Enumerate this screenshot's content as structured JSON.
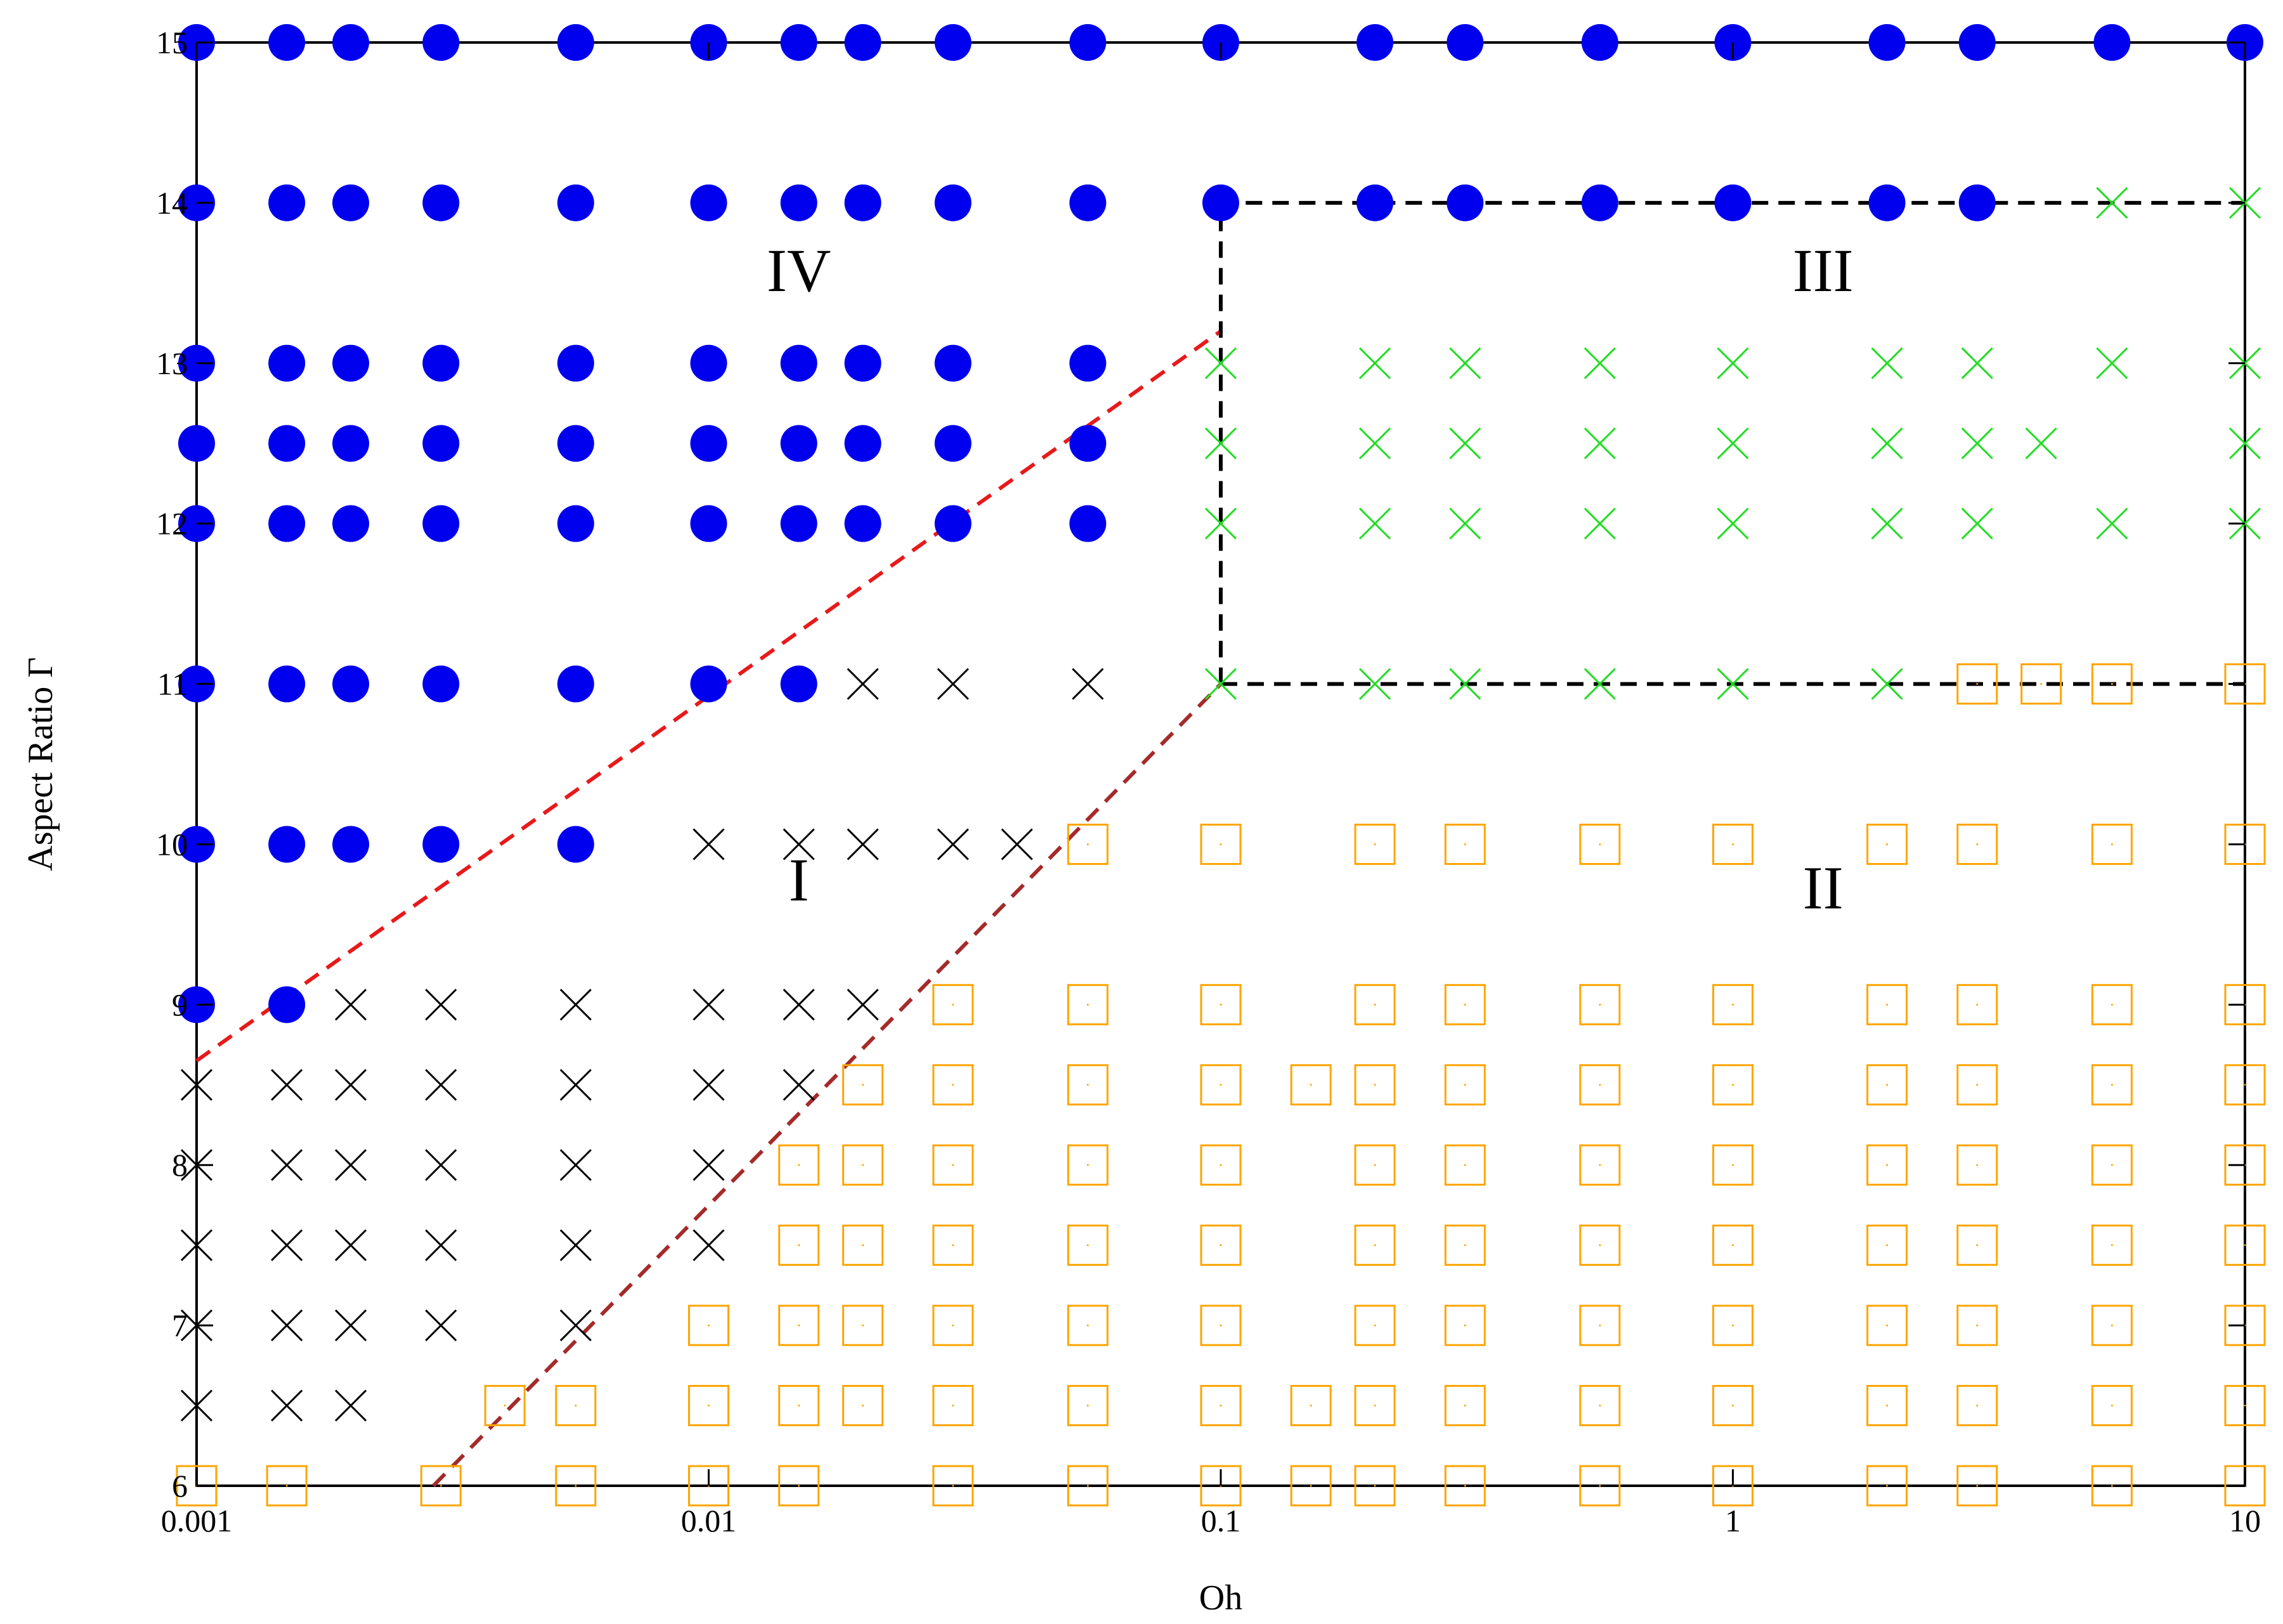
{
  "chart_data": {
    "type": "scatter",
    "xlabel": "Oh",
    "ylabel": "Aspect Ratio Γ",
    "xscale": "log",
    "xlim": [
      0.001,
      10
    ],
    "ylim": [
      6,
      15
    ],
    "x_ticks": [
      {
        "value": 0.001,
        "label": "0.001"
      },
      {
        "value": 0.01,
        "label": "0.01"
      },
      {
        "value": 0.1,
        "label": "0.1"
      },
      {
        "value": 1,
        "label": "1"
      },
      {
        "value": 10,
        "label": "10"
      }
    ],
    "y_ticks": [
      {
        "value": 6,
        "label": "6"
      },
      {
        "value": 7,
        "label": "7"
      },
      {
        "value": 8,
        "label": "8"
      },
      {
        "value": 9,
        "label": "9"
      },
      {
        "value": 10,
        "label": "10"
      },
      {
        "value": 11,
        "label": "11"
      },
      {
        "value": 12,
        "label": "12"
      },
      {
        "value": 13,
        "label": "13"
      },
      {
        "value": 14,
        "label": "14"
      },
      {
        "value": 15,
        "label": "15"
      }
    ],
    "regions": [
      {
        "label": "IV",
        "x": 0.015,
        "y": 13.45
      },
      {
        "label": "III",
        "x": 1.5,
        "y": 13.45
      },
      {
        "label": "I",
        "x": 0.015,
        "y": 9.65
      },
      {
        "label": "II",
        "x": 1.5,
        "y": 9.6
      }
    ],
    "boundaries": [
      {
        "color": "#e8191a",
        "points": [
          [
            0.001,
            8.65
          ],
          [
            0.1,
            13.2
          ]
        ]
      },
      {
        "color": "#a52a2a",
        "points": [
          [
            0.0029,
            6.0
          ],
          [
            0.1,
            11.0
          ]
        ]
      },
      {
        "color": "#000000",
        "points": [
          [
            0.1,
            11.0
          ],
          [
            0.1,
            14.0
          ],
          [
            10,
            14.0
          ]
        ]
      },
      {
        "color": "#000000",
        "points": [
          [
            0.1,
            11.0
          ],
          [
            10,
            11.0
          ]
        ]
      }
    ],
    "series": [
      {
        "marker": "filled-circle",
        "color": "#0000ee",
        "points": [
          [
            0.001,
            15
          ],
          [
            0.0015,
            15
          ],
          [
            0.002,
            15
          ],
          [
            0.003,
            15
          ],
          [
            0.0055,
            15
          ],
          [
            0.01,
            15
          ],
          [
            0.015,
            15
          ],
          [
            0.02,
            15
          ],
          [
            0.03,
            15
          ],
          [
            0.055,
            15
          ],
          [
            0.1,
            15
          ],
          [
            0.2,
            15
          ],
          [
            0.3,
            15
          ],
          [
            0.55,
            15
          ],
          [
            1,
            15
          ],
          [
            2,
            15
          ],
          [
            3,
            15
          ],
          [
            5.5,
            15
          ],
          [
            10,
            15
          ],
          [
            0.001,
            14
          ],
          [
            0.0015,
            14
          ],
          [
            0.002,
            14
          ],
          [
            0.003,
            14
          ],
          [
            0.0055,
            14
          ],
          [
            0.01,
            14
          ],
          [
            0.015,
            14
          ],
          [
            0.02,
            14
          ],
          [
            0.03,
            14
          ],
          [
            0.055,
            14
          ],
          [
            0.1,
            14
          ],
          [
            0.2,
            14
          ],
          [
            0.3,
            14
          ],
          [
            0.55,
            14
          ],
          [
            1,
            14
          ],
          [
            2,
            14
          ],
          [
            3,
            14
          ],
          [
            0.001,
            13
          ],
          [
            0.0015,
            13
          ],
          [
            0.002,
            13
          ],
          [
            0.003,
            13
          ],
          [
            0.0055,
            13
          ],
          [
            0.01,
            13
          ],
          [
            0.015,
            13
          ],
          [
            0.02,
            13
          ],
          [
            0.03,
            13
          ],
          [
            0.055,
            13
          ],
          [
            0.001,
            12.5
          ],
          [
            0.0015,
            12.5
          ],
          [
            0.002,
            12.5
          ],
          [
            0.003,
            12.5
          ],
          [
            0.0055,
            12.5
          ],
          [
            0.01,
            12.5
          ],
          [
            0.015,
            12.5
          ],
          [
            0.02,
            12.5
          ],
          [
            0.03,
            12.5
          ],
          [
            0.055,
            12.5
          ],
          [
            0.001,
            12
          ],
          [
            0.0015,
            12
          ],
          [
            0.002,
            12
          ],
          [
            0.003,
            12
          ],
          [
            0.0055,
            12
          ],
          [
            0.01,
            12
          ],
          [
            0.015,
            12
          ],
          [
            0.02,
            12
          ],
          [
            0.03,
            12
          ],
          [
            0.055,
            12
          ],
          [
            0.001,
            11
          ],
          [
            0.0015,
            11
          ],
          [
            0.002,
            11
          ],
          [
            0.003,
            11
          ],
          [
            0.0055,
            11
          ],
          [
            0.01,
            11
          ],
          [
            0.015,
            11
          ],
          [
            0.001,
            10
          ],
          [
            0.0015,
            10
          ],
          [
            0.002,
            10
          ],
          [
            0.003,
            10
          ],
          [
            0.0055,
            10
          ],
          [
            0.001,
            9
          ],
          [
            0.0015,
            9
          ]
        ]
      },
      {
        "marker": "cross",
        "color": "#000000",
        "points": [
          [
            0.02,
            11
          ],
          [
            0.03,
            11
          ],
          [
            0.055,
            11
          ],
          [
            0.01,
            10
          ],
          [
            0.015,
            10
          ],
          [
            0.02,
            10
          ],
          [
            0.03,
            10
          ],
          [
            0.04,
            10
          ],
          [
            0.002,
            9
          ],
          [
            0.003,
            9
          ],
          [
            0.0055,
            9
          ],
          [
            0.01,
            9
          ],
          [
            0.015,
            9
          ],
          [
            0.02,
            9
          ],
          [
            0.001,
            8.5
          ],
          [
            0.0015,
            8.5
          ],
          [
            0.002,
            8.5
          ],
          [
            0.003,
            8.5
          ],
          [
            0.0055,
            8.5
          ],
          [
            0.01,
            8.5
          ],
          [
            0.015,
            8.5
          ],
          [
            0.001,
            8
          ],
          [
            0.0015,
            8
          ],
          [
            0.002,
            8
          ],
          [
            0.003,
            8
          ],
          [
            0.0055,
            8
          ],
          [
            0.01,
            8
          ],
          [
            0.001,
            7.5
          ],
          [
            0.0015,
            7.5
          ],
          [
            0.002,
            7.5
          ],
          [
            0.003,
            7.5
          ],
          [
            0.0055,
            7.5
          ],
          [
            0.01,
            7.5
          ],
          [
            0.001,
            7
          ],
          [
            0.0015,
            7
          ],
          [
            0.002,
            7
          ],
          [
            0.003,
            7
          ],
          [
            0.0055,
            7
          ],
          [
            0.001,
            6.5
          ],
          [
            0.0015,
            6.5
          ],
          [
            0.002,
            6.5
          ]
        ]
      },
      {
        "marker": "cross",
        "color": "#22dd22",
        "points": [
          [
            5.5,
            14
          ],
          [
            10,
            14
          ],
          [
            0.1,
            13
          ],
          [
            0.2,
            13
          ],
          [
            0.3,
            13
          ],
          [
            0.55,
            13
          ],
          [
            1,
            13
          ],
          [
            2,
            13
          ],
          [
            3,
            13
          ],
          [
            5.5,
            13
          ],
          [
            10,
            13
          ],
          [
            0.1,
            12.5
          ],
          [
            0.2,
            12.5
          ],
          [
            0.3,
            12.5
          ],
          [
            0.55,
            12.5
          ],
          [
            1,
            12.5
          ],
          [
            2,
            12.5
          ],
          [
            3,
            12.5
          ],
          [
            4,
            12.5
          ],
          [
            10,
            12.5
          ],
          [
            0.1,
            12
          ],
          [
            0.2,
            12
          ],
          [
            0.3,
            12
          ],
          [
            0.55,
            12
          ],
          [
            1,
            12
          ],
          [
            2,
            12
          ],
          [
            3,
            12
          ],
          [
            5.5,
            12
          ],
          [
            10,
            12
          ],
          [
            0.1,
            11
          ],
          [
            0.2,
            11
          ],
          [
            0.3,
            11
          ],
          [
            0.55,
            11
          ],
          [
            1,
            11
          ],
          [
            2,
            11
          ]
        ]
      },
      {
        "marker": "open-square",
        "color": "#ffa500",
        "points": [
          [
            3,
            11
          ],
          [
            4,
            11
          ],
          [
            5.5,
            11
          ],
          [
            10,
            11
          ],
          [
            0.055,
            10
          ],
          [
            0.1,
            10
          ],
          [
            0.2,
            10
          ],
          [
            0.3,
            10
          ],
          [
            0.55,
            10
          ],
          [
            1,
            10
          ],
          [
            2,
            10
          ],
          [
            3,
            10
          ],
          [
            5.5,
            10
          ],
          [
            10,
            10
          ],
          [
            0.03,
            9
          ],
          [
            0.055,
            9
          ],
          [
            0.1,
            9
          ],
          [
            0.2,
            9
          ],
          [
            0.3,
            9
          ],
          [
            0.55,
            9
          ],
          [
            1,
            9
          ],
          [
            2,
            9
          ],
          [
            3,
            9
          ],
          [
            5.5,
            9
          ],
          [
            10,
            9
          ],
          [
            0.02,
            8.5
          ],
          [
            0.03,
            8.5
          ],
          [
            0.055,
            8.5
          ],
          [
            0.1,
            8.5
          ],
          [
            0.15,
            8.5
          ],
          [
            0.2,
            8.5
          ],
          [
            0.3,
            8.5
          ],
          [
            0.55,
            8.5
          ],
          [
            1,
            8.5
          ],
          [
            2,
            8.5
          ],
          [
            3,
            8.5
          ],
          [
            5.5,
            8.5
          ],
          [
            10,
            8.5
          ],
          [
            0.015,
            8
          ],
          [
            0.02,
            8
          ],
          [
            0.03,
            8
          ],
          [
            0.055,
            8
          ],
          [
            0.1,
            8
          ],
          [
            0.2,
            8
          ],
          [
            0.3,
            8
          ],
          [
            0.55,
            8
          ],
          [
            1,
            8
          ],
          [
            2,
            8
          ],
          [
            3,
            8
          ],
          [
            5.5,
            8
          ],
          [
            10,
            8
          ],
          [
            0.015,
            7.5
          ],
          [
            0.02,
            7.5
          ],
          [
            0.03,
            7.5
          ],
          [
            0.055,
            7.5
          ],
          [
            0.1,
            7.5
          ],
          [
            0.2,
            7.5
          ],
          [
            0.3,
            7.5
          ],
          [
            0.55,
            7.5
          ],
          [
            1,
            7.5
          ],
          [
            2,
            7.5
          ],
          [
            3,
            7.5
          ],
          [
            5.5,
            7.5
          ],
          [
            10,
            7.5
          ],
          [
            0.01,
            7
          ],
          [
            0.015,
            7
          ],
          [
            0.02,
            7
          ],
          [
            0.03,
            7
          ],
          [
            0.055,
            7
          ],
          [
            0.1,
            7
          ],
          [
            0.2,
            7
          ],
          [
            0.3,
            7
          ],
          [
            0.55,
            7
          ],
          [
            1,
            7
          ],
          [
            2,
            7
          ],
          [
            3,
            7
          ],
          [
            5.5,
            7
          ],
          [
            10,
            7
          ],
          [
            0.004,
            6.5
          ],
          [
            0.0055,
            6.5
          ],
          [
            0.01,
            6.5
          ],
          [
            0.015,
            6.5
          ],
          [
            0.02,
            6.5
          ],
          [
            0.03,
            6.5
          ],
          [
            0.055,
            6.5
          ],
          [
            0.1,
            6.5
          ],
          [
            0.15,
            6.5
          ],
          [
            0.2,
            6.5
          ],
          [
            0.3,
            6.5
          ],
          [
            0.55,
            6.5
          ],
          [
            1,
            6.5
          ],
          [
            2,
            6.5
          ],
          [
            3,
            6.5
          ],
          [
            5.5,
            6.5
          ],
          [
            10,
            6.5
          ],
          [
            0.001,
            6
          ],
          [
            0.0015,
            6
          ],
          [
            0.003,
            6
          ],
          [
            0.0055,
            6
          ],
          [
            0.01,
            6
          ],
          [
            0.015,
            6
          ],
          [
            0.03,
            6
          ],
          [
            0.055,
            6
          ],
          [
            0.1,
            6
          ],
          [
            0.15,
            6
          ],
          [
            0.2,
            6
          ],
          [
            0.3,
            6
          ],
          [
            0.55,
            6
          ],
          [
            1,
            6
          ],
          [
            2,
            6
          ],
          [
            3,
            6
          ],
          [
            5.5,
            6
          ],
          [
            10,
            6
          ]
        ]
      }
    ]
  }
}
